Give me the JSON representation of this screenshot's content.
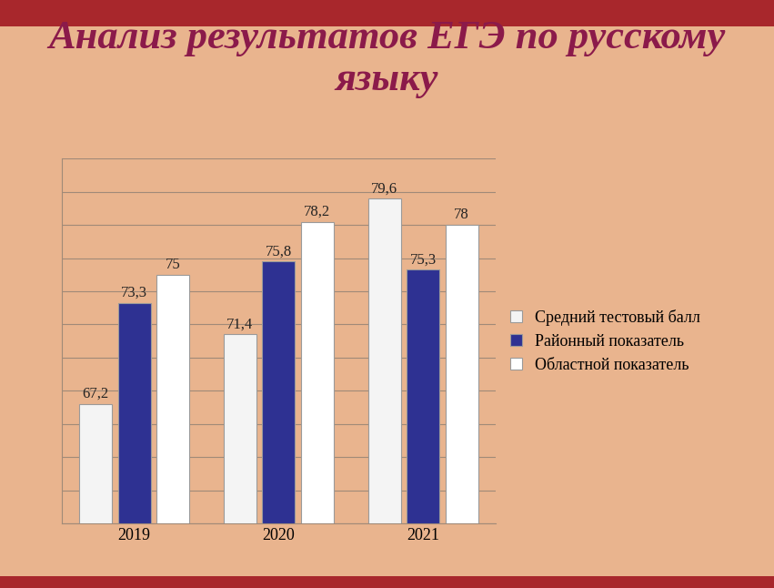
{
  "chart_data": {
    "type": "bar",
    "title": "Анализ результатов ЕГЭ по русскому языку",
    "categories": [
      "2019",
      "2020",
      "2021"
    ],
    "series": [
      {
        "name": "Средний тестовый балл",
        "color": "#f4f4f4",
        "values": [
          67.2,
          71.4,
          79.6
        ],
        "value_labels": [
          "67,2",
          "71,4",
          "79,6"
        ]
      },
      {
        "name": "Районный показатель",
        "color": "#2e3192",
        "values": [
          73.3,
          75.8,
          75.3
        ],
        "value_labels": [
          "73,3",
          "75,8",
          "75,3"
        ]
      },
      {
        "name": "Областной показатель",
        "color": "#ffffff",
        "values": [
          75,
          78.2,
          78
        ],
        "value_labels": [
          "75",
          "78,2",
          "78"
        ]
      }
    ],
    "ylim": [
      60,
      82
    ],
    "yticks": [
      60,
      62,
      64,
      66,
      68,
      70,
      72,
      74,
      76,
      78,
      80,
      82
    ],
    "grid": true,
    "legend": "right",
    "data_labels": true,
    "tick_labels": "x"
  }
}
